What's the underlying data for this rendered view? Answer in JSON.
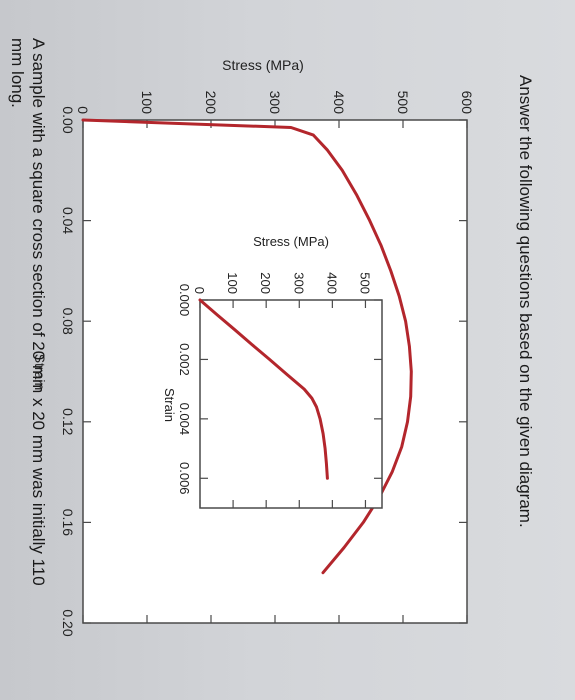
{
  "question": {
    "prompt": "Answer the following questions based on the given diagram.",
    "line1": "A sample with a square cross section of 20 mm x 20 mm was initially 110",
    "line2": "mm long."
  },
  "colors": {
    "curve": "#b3262c",
    "axis": "#4a4a4a",
    "text": "#1a1a1a"
  },
  "chart_data": [
    {
      "type": "line",
      "title": "",
      "xlabel": "Strain",
      "ylabel": "Stress (MPa)",
      "xlim": [
        0,
        0.2
      ],
      "ylim": [
        0,
        600
      ],
      "x_ticks": [
        "0.00",
        "0.04",
        "0.08",
        "0.12",
        "0.16",
        "0.20"
      ],
      "y_ticks": [
        "0",
        "100",
        "200",
        "300",
        "400",
        "500",
        "600"
      ],
      "grid": false,
      "series": [
        {
          "x": [
            0,
            0.003,
            0.006,
            0.012,
            0.02,
            0.03,
            0.04,
            0.05,
            0.06,
            0.07,
            0.08,
            0.09,
            0.1,
            0.11,
            0.12,
            0.13,
            0.14,
            0.15,
            0.16,
            0.17,
            0.18
          ],
          "y": [
            0,
            325,
            360,
            382,
            405,
            428,
            448,
            466,
            481,
            494,
            504,
            510,
            513,
            512,
            507,
            498,
            483,
            463,
            438,
            408,
            375
          ]
        }
      ]
    },
    {
      "type": "line",
      "title": "",
      "xlabel": "Strain",
      "ylabel": "Stress (MPa)",
      "xlim": [
        0,
        0.007
      ],
      "ylim": [
        0,
        550
      ],
      "x_ticks": [
        "0.000",
        "0.002",
        "0.004",
        "0.006"
      ],
      "y_ticks": [
        "0",
        "100",
        "200",
        "300",
        "400",
        "500"
      ],
      "grid": false,
      "series": [
        {
          "x": [
            0,
            0.0005,
            0.001,
            0.0015,
            0.002,
            0.0025,
            0.003,
            0.0033,
            0.0036,
            0.004,
            0.0045,
            0.005,
            0.0055,
            0.006
          ],
          "y": [
            0,
            52,
            105,
            157,
            210,
            262,
            315,
            338,
            352,
            363,
            372,
            378,
            382,
            385
          ]
        }
      ]
    }
  ]
}
